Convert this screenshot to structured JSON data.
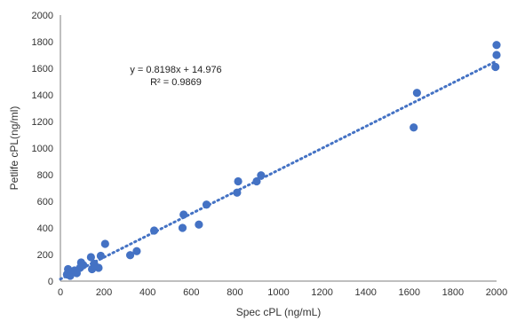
{
  "chart_data": {
    "type": "scatter",
    "xlabel": "Spec cPL (ng/mL)",
    "ylabel": "Petlife cPL(ng/ml)",
    "xlim": [
      0,
      2000
    ],
    "ylim": [
      0,
      2000
    ],
    "x_ticks": [
      0,
      200,
      400,
      600,
      800,
      1000,
      1200,
      1400,
      1600,
      1800,
      2000
    ],
    "y_ticks": [
      0,
      200,
      400,
      600,
      800,
      1000,
      1200,
      1400,
      1600,
      1800,
      2000
    ],
    "grid": false,
    "legend": "none",
    "marker_color": "#4472C4",
    "trendline": {
      "type": "linear",
      "style": "dotted",
      "color": "#4472C4",
      "slope": 0.8198,
      "intercept": 14.976,
      "equation_text": "y = 0.8198x + 14.976",
      "r2_text": "R² = 0.9869"
    },
    "series": [
      {
        "points": [
          [
            30,
            50
          ],
          [
            35,
            90
          ],
          [
            40,
            60
          ],
          [
            45,
            40
          ],
          [
            55,
            70
          ],
          [
            65,
            80
          ],
          [
            75,
            60
          ],
          [
            90,
            100
          ],
          [
            95,
            140
          ],
          [
            105,
            120
          ],
          [
            140,
            180
          ],
          [
            145,
            90
          ],
          [
            155,
            130
          ],
          [
            175,
            100
          ],
          [
            185,
            190
          ],
          [
            205,
            280
          ],
          [
            320,
            195
          ],
          [
            350,
            225
          ],
          [
            430,
            380
          ],
          [
            560,
            400
          ],
          [
            565,
            500
          ],
          [
            635,
            425
          ],
          [
            670,
            575
          ],
          [
            810,
            665
          ],
          [
            815,
            750
          ],
          [
            900,
            750
          ],
          [
            920,
            795
          ],
          [
            1620,
            1155
          ],
          [
            1635,
            1415
          ],
          [
            1995,
            1610
          ],
          [
            2000,
            1700
          ],
          [
            2000,
            1775
          ]
        ]
      }
    ]
  }
}
